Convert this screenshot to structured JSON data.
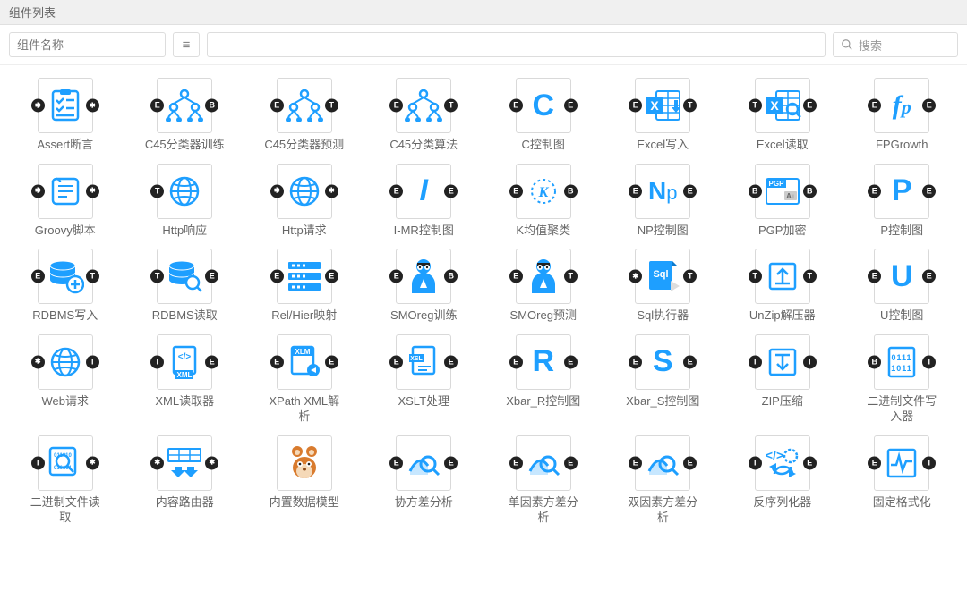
{
  "header": {
    "title": "组件列表"
  },
  "toolbar": {
    "name_placeholder": "组件名称",
    "search_label": "搜索"
  },
  "accent_color": "#1e9fff",
  "port_color": "#222222",
  "components": [
    {
      "label": "Assert断言",
      "icon": "checklist",
      "left": "*",
      "right": "*"
    },
    {
      "label": "C45分类器训练",
      "icon": "tree",
      "left": "E",
      "right": "B"
    },
    {
      "label": "C45分类器预测",
      "icon": "tree",
      "left": "E",
      "right": "T"
    },
    {
      "label": "C45分类算法",
      "icon": "tree",
      "left": "E",
      "right": "T"
    },
    {
      "label": "C控制图",
      "icon": "letter",
      "letter": "C",
      "left": "E",
      "right": "E"
    },
    {
      "label": "Excel写入",
      "icon": "excel-down",
      "left": "E",
      "right": "T"
    },
    {
      "label": "Excel读取",
      "icon": "excel-search",
      "left": "T",
      "right": "E"
    },
    {
      "label": "FPGrowth",
      "icon": "fp",
      "left": "E",
      "right": "E"
    },
    {
      "label": "Groovy脚本",
      "icon": "scroll",
      "left": "*",
      "right": "*"
    },
    {
      "label": "Http响应",
      "icon": "globe",
      "left": "T",
      "right": ""
    },
    {
      "label": "Http请求",
      "icon": "globe",
      "left": "*",
      "right": "*"
    },
    {
      "label": "I-MR控制图",
      "icon": "letter",
      "letter": "I",
      "italic": true,
      "left": "E",
      "right": "E"
    },
    {
      "label": "K均值聚类",
      "icon": "k-circle",
      "left": "E",
      "right": "B"
    },
    {
      "label": "NP控制图",
      "icon": "np",
      "left": "E",
      "right": "E"
    },
    {
      "label": "PGP加密",
      "icon": "pgp",
      "left": "B",
      "right": "B"
    },
    {
      "label": "P控制图",
      "icon": "letter",
      "letter": "P",
      "left": "E",
      "right": "E"
    },
    {
      "label": "RDBMS写入",
      "icon": "db-plus",
      "left": "E",
      "right": "T"
    },
    {
      "label": "RDBMS读取",
      "icon": "db-search",
      "left": "T",
      "right": "E"
    },
    {
      "label": "Rel/Hier映射",
      "icon": "rows",
      "left": "E",
      "right": "E"
    },
    {
      "label": "SMOreg训练",
      "icon": "person",
      "left": "E",
      "right": "B"
    },
    {
      "label": "SMOreg预测",
      "icon": "person",
      "left": "E",
      "right": "T"
    },
    {
      "label": "Sql执行器",
      "icon": "sql",
      "left": "*",
      "right": "T"
    },
    {
      "label": "UnZip解压器",
      "icon": "unzip",
      "left": "T",
      "right": "T"
    },
    {
      "label": "U控制图",
      "icon": "letter",
      "letter": "U",
      "left": "E",
      "right": "E"
    },
    {
      "label": "Web请求",
      "icon": "globe",
      "left": "*",
      "right": "T"
    },
    {
      "label": "XML读取器",
      "icon": "xml",
      "left": "T",
      "right": "E"
    },
    {
      "label": "XPath XML解析",
      "icon": "xlm",
      "left": "E",
      "right": "E"
    },
    {
      "label": "XSLT处理",
      "icon": "xsl",
      "left": "E",
      "right": "E"
    },
    {
      "label": "Xbar_R控制图",
      "icon": "letter",
      "letter": "R",
      "left": "E",
      "right": "E"
    },
    {
      "label": "Xbar_S控制图",
      "icon": "letter",
      "letter": "S",
      "left": "E",
      "right": "E"
    },
    {
      "label": "ZIP压缩",
      "icon": "zip",
      "left": "T",
      "right": "T"
    },
    {
      "label": "二进制文件写入器",
      "icon": "binary",
      "left": "B",
      "right": "T"
    },
    {
      "label": "二进制文件读取",
      "icon": "binary-search",
      "left": "T",
      "right": "*"
    },
    {
      "label": "内容路由器",
      "icon": "router",
      "left": "*",
      "right": "*"
    },
    {
      "label": "内置数据模型",
      "icon": "squirrel",
      "left": "",
      "right": ""
    },
    {
      "label": "协方差分析",
      "icon": "analysis",
      "left": "E",
      "right": "E"
    },
    {
      "label": "单因素方差分析",
      "icon": "analysis",
      "left": "E",
      "right": "E"
    },
    {
      "label": "双因素方差分析",
      "icon": "analysis",
      "left": "E",
      "right": "E"
    },
    {
      "label": "反序列化器",
      "icon": "deserialize",
      "left": "T",
      "right": "E"
    },
    {
      "label": "固定格式化",
      "icon": "pulse",
      "left": "E",
      "right": "T"
    }
  ]
}
